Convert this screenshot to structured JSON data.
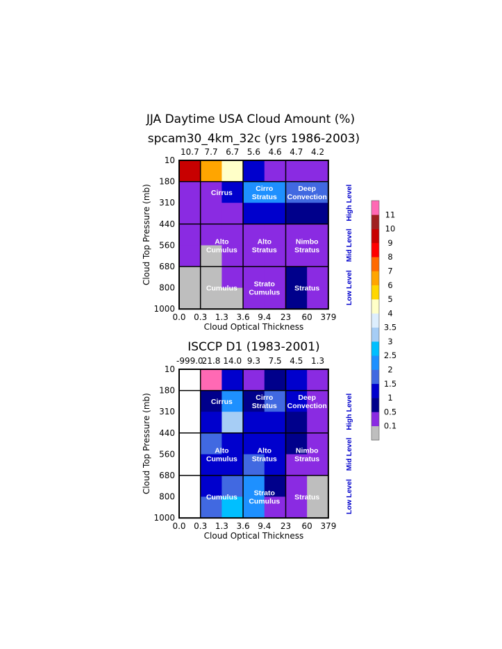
{
  "title": "JJA Daytime USA Cloud Amount (%)",
  "colorbar": {
    "labels": [
      "0.1",
      "0.5",
      "1",
      "1.5",
      "2",
      "2.5",
      "3",
      "3.5",
      "4",
      "5",
      "6",
      "7",
      "8",
      "9",
      "10",
      "11"
    ],
    "colors": [
      "#bebebe",
      "#8a2be2",
      "#00008b",
      "#0000cd",
      "#4169e1",
      "#1e90ff",
      "#00bfff",
      "#a6cdf5",
      "#ddeefd",
      "#ffffc8",
      "#ffd700",
      "#ffa500",
      "#ff6a00",
      "#ff0000",
      "#c80000",
      "#a02020",
      "#ff69b4"
    ]
  },
  "level_labels": [
    "High Level",
    "Mid Level",
    "Low Level"
  ],
  "chart_data": [
    {
      "type": "heatmap",
      "title": "spcam30_4km_32c (yrs 1986-2003)",
      "xlabel": "Cloud Optical Thickness",
      "ylabel": "Cloud Top Pressure (mb)",
      "x_ticks": [
        "0.0",
        "0.3",
        "1.3",
        "3.6",
        "9.4",
        "23",
        "60",
        "379"
      ],
      "y_ticks": [
        "10",
        "180",
        "310",
        "440",
        "560",
        "680",
        "800",
        "1000"
      ],
      "column_totals": [
        "10.7",
        "7.7",
        "6.7",
        "5.6",
        "4.6",
        "4.7",
        "4.2"
      ],
      "cloud_types": [
        "Cirrus",
        "Cirro Stratus",
        "Deep Convection",
        "Alto Cumulus",
        "Alto Stratus",
        "Nimbo Stratus",
        "Cumulus",
        "Strato Cumulus",
        "Stratus"
      ],
      "cells": [
        [
          "#c80000",
          "#ffa500",
          "#ffffc8",
          "#0000cd",
          "#8a2be2",
          "#8a2be2",
          "#8a2be2"
        ],
        [
          "#8a2be2",
          "#8a2be2",
          "#0000cd",
          "#1e90ff",
          "#1e90ff",
          "#4169e1",
          "#4169e1"
        ],
        [
          "#8a2be2",
          "#8a2be2",
          "#8a2be2",
          "#0000cd",
          "#0000cd",
          "#00008b",
          "#00008b"
        ],
        [
          "#8a2be2",
          "#8a2be2",
          "#8a2be2",
          "#8a2be2",
          "#8a2be2",
          "#8a2be2",
          "#8a2be2"
        ],
        [
          "#8a2be2",
          "#bebebe",
          "#8a2be2",
          "#8a2be2",
          "#8a2be2",
          "#8a2be2",
          "#8a2be2"
        ],
        [
          "#bebebe",
          "#bebebe",
          "#8a2be2",
          "#8a2be2",
          "#8a2be2",
          "#00008b",
          "#8a2be2"
        ],
        [
          "#bebebe",
          "#bebebe",
          "#bebebe",
          "#8a2be2",
          "#8a2be2",
          "#00008b",
          "#8a2be2"
        ]
      ]
    },
    {
      "type": "heatmap",
      "title": "ISCCP D1 (1983-2001)",
      "xlabel": "Cloud Optical Thickness",
      "ylabel": "Cloud Top Pressure (mb)",
      "x_ticks": [
        "0.0",
        "0.3",
        "1.3",
        "3.6",
        "9.4",
        "23",
        "60",
        "379"
      ],
      "y_ticks": [
        "10",
        "180",
        "310",
        "440",
        "560",
        "680",
        "800",
        "1000"
      ],
      "column_totals": [
        "-999.0",
        "21.8",
        "14.0",
        "9.3",
        "7.5",
        "4.5",
        "1.3"
      ],
      "cloud_types": [
        "Cirrus",
        "Cirro Stratus",
        "Deep Convection",
        "Alto Cumulus",
        "Alto Stratus",
        "Nimbo Stratus",
        "Cumulus",
        "Strato Cumulus",
        "Stratus"
      ],
      "cells": [
        [
          "#ffffff",
          "#ff69b4",
          "#0000cd",
          "#8a2be2",
          "#00008b",
          "#0000cd",
          "#8a2be2"
        ],
        [
          "#ffffff",
          "#00008b",
          "#1e90ff",
          "#00008b",
          "#4169e1",
          "#0000cd",
          "#8a2be2"
        ],
        [
          "#ffffff",
          "#0000cd",
          "#a6cdf5",
          "#0000cd",
          "#0000cd",
          "#00008b",
          "#8a2be2"
        ],
        [
          "#ffffff",
          "#4169e1",
          "#0000cd",
          "#0000cd",
          "#0000cd",
          "#00008b",
          "#8a2be2"
        ],
        [
          "#ffffff",
          "#0000cd",
          "#0000cd",
          "#4169e1",
          "#0000cd",
          "#8a2be2",
          "#8a2be2"
        ],
        [
          "#ffffff",
          "#0000cd",
          "#4169e1",
          "#1e90ff",
          "#00008b",
          "#8a2be2",
          "#bebebe"
        ],
        [
          "#ffffff",
          "#4169e1",
          "#00bfff",
          "#1e90ff",
          "#8a2be2",
          "#8a2be2",
          "#bebebe"
        ]
      ]
    }
  ]
}
